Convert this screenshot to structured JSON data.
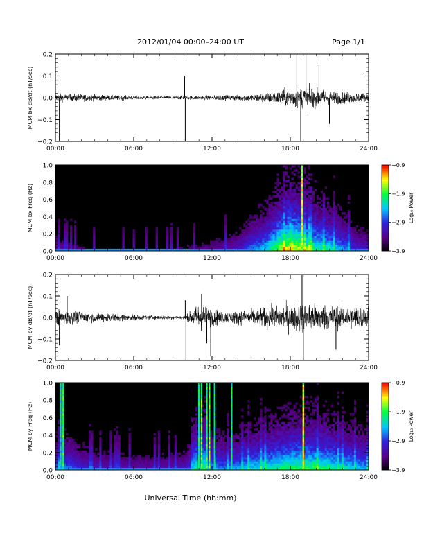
{
  "header": {
    "title": "2012/01/04  00:00–24:00 UT",
    "page": "Page 1/1"
  },
  "footer": {
    "xlabel": "Universal Time (hh:mm)"
  },
  "colors": {
    "background_plot": "#000000",
    "trace": "#000000",
    "colormap": [
      "#000000",
      "#5a008a",
      "#3020e0",
      "#00c8ff",
      "#00ff40",
      "#ffff00",
      "#ff0000"
    ]
  },
  "chart_data": [
    {
      "id": "bx-dbdt",
      "type": "line",
      "ylabel": "MCM bx dB/dt (nT/sec)",
      "ylim": [
        -0.2,
        0.2
      ],
      "yticks": [
        -0.2,
        -0.1,
        0.0,
        0.1,
        0.2
      ],
      "ytick_labels": [
        "−0.2",
        "−0.1",
        "0.0",
        "0.1",
        "0.2"
      ],
      "xlim": [
        0,
        24
      ],
      "xticks": [
        0,
        6,
        12,
        18,
        24
      ],
      "xtick_labels": [
        "00:00",
        "06:00",
        "12:00",
        "18:00",
        "24:00"
      ],
      "envelope": {
        "x": [
          0,
          1,
          2,
          3,
          4,
          5,
          6,
          7,
          8,
          9,
          10,
          11,
          12,
          13,
          14,
          15,
          16,
          17,
          18,
          19,
          20,
          21,
          22,
          23,
          24
        ],
        "amp": [
          0.018,
          0.016,
          0.015,
          0.013,
          0.011,
          0.01,
          0.009,
          0.008,
          0.008,
          0.008,
          0.008,
          0.009,
          0.01,
          0.011,
          0.013,
          0.016,
          0.02,
          0.026,
          0.045,
          0.05,
          0.04,
          0.03,
          0.025,
          0.022,
          0.02
        ]
      },
      "spikes": [
        {
          "x": 0.3,
          "y": -0.2
        },
        {
          "x": 9.9,
          "y": 0.1
        },
        {
          "x": 9.95,
          "y": -0.2
        },
        {
          "x": 18.5,
          "y": 0.2
        },
        {
          "x": 18.8,
          "y": -0.2
        },
        {
          "x": 19.2,
          "y": 0.2
        },
        {
          "x": 20.2,
          "y": 0.15
        },
        {
          "x": 21.0,
          "y": -0.12
        }
      ]
    },
    {
      "id": "bx-freq",
      "type": "heatmap",
      "ylabel": "MCM bx Freq (Hz)",
      "ylim": [
        0.0,
        1.0
      ],
      "yticks": [
        0.0,
        0.2,
        0.4,
        0.6,
        0.8,
        1.0
      ],
      "ytick_labels": [
        "0.0",
        "0.2",
        "0.4",
        "0.6",
        "0.8",
        "1.0"
      ],
      "xlim": [
        0,
        24
      ],
      "xticks": [
        0,
        6,
        12,
        18,
        24
      ],
      "xtick_labels": [
        "00:00",
        "06:00",
        "12:00",
        "18:00",
        "24:00"
      ],
      "colorbar": {
        "label": "Log₁₀ Power",
        "range": [
          -3.9,
          -0.9
        ],
        "ticks": [
          -0.9,
          -1.9,
          -2.9,
          -3.9
        ],
        "tick_labels": [
          "−0.9",
          "−1.9",
          "−2.9",
          "−3.9"
        ]
      },
      "activity": {
        "x": [
          0,
          2,
          4,
          6,
          8,
          10,
          12,
          14,
          15,
          16,
          17,
          18,
          19,
          20,
          21,
          22,
          23,
          24
        ],
        "level": [
          0.25,
          0.15,
          0.12,
          0.1,
          0.12,
          0.15,
          0.2,
          0.3,
          0.45,
          0.55,
          0.75,
          0.9,
          0.8,
          0.65,
          0.6,
          0.5,
          0.35,
          0.3
        ]
      },
      "bright_lines": [
        {
          "x": 18.9,
          "intensity": 0.8
        }
      ]
    },
    {
      "id": "by-dbdt",
      "type": "line",
      "ylabel": "MCM by dB/dt (nT/sec)",
      "ylim": [
        -0.2,
        0.2
      ],
      "yticks": [
        -0.2,
        -0.1,
        0.0,
        0.1,
        0.2
      ],
      "ytick_labels": [
        "−0.2",
        "−0.1",
        "0.0",
        "0.1",
        "0.2"
      ],
      "xlim": [
        0,
        24
      ],
      "xticks": [
        0,
        6,
        12,
        18,
        24
      ],
      "xtick_labels": [
        "00:00",
        "06:00",
        "12:00",
        "18:00",
        "24:00"
      ],
      "envelope": {
        "x": [
          0,
          1,
          2,
          3,
          4,
          5,
          6,
          7,
          8,
          9,
          10,
          11,
          12,
          13,
          14,
          15,
          16,
          17,
          18,
          19,
          20,
          21,
          22,
          23,
          24
        ],
        "amp": [
          0.035,
          0.03,
          0.025,
          0.02,
          0.02,
          0.015,
          0.012,
          0.01,
          0.01,
          0.008,
          0.01,
          0.06,
          0.04,
          0.025,
          0.03,
          0.035,
          0.045,
          0.05,
          0.06,
          0.065,
          0.06,
          0.055,
          0.05,
          0.05,
          0.05
        ]
      },
      "spikes": [
        {
          "x": 0.3,
          "y": -0.13
        },
        {
          "x": 0.9,
          "y": 0.1
        },
        {
          "x": 9.95,
          "y": 0.08
        },
        {
          "x": 10.0,
          "y": -0.2
        },
        {
          "x": 11.2,
          "y": 0.11
        },
        {
          "x": 11.6,
          "y": -0.12
        },
        {
          "x": 11.9,
          "y": -0.18
        },
        {
          "x": 18.9,
          "y": 0.2
        },
        {
          "x": 19.0,
          "y": -0.2
        },
        {
          "x": 21.5,
          "y": -0.15
        }
      ]
    },
    {
      "id": "by-freq",
      "type": "heatmap",
      "ylabel": "MCM by Freq (Hz)",
      "ylim": [
        0.0,
        1.0
      ],
      "yticks": [
        0.0,
        0.2,
        0.4,
        0.6,
        0.8,
        1.0
      ],
      "ytick_labels": [
        "0.0",
        "0.2",
        "0.4",
        "0.6",
        "0.8",
        "1.0"
      ],
      "xlim": [
        0,
        24
      ],
      "xticks": [
        0,
        6,
        12,
        18,
        24
      ],
      "xtick_labels": [
        "00:00",
        "06:00",
        "12:00",
        "18:00",
        "24:00"
      ],
      "colorbar": {
        "label": "Log₁₀ Power",
        "range": [
          -3.9,
          -0.9
        ],
        "ticks": [
          -0.9,
          -1.9,
          -2.9,
          -3.9
        ],
        "tick_labels": [
          "−0.9",
          "−1.9",
          "−2.9",
          "−3.9"
        ]
      },
      "activity": {
        "x": [
          0,
          1,
          2,
          3,
          4,
          6,
          8,
          10,
          11,
          12,
          13,
          14,
          15,
          16,
          17,
          18,
          19,
          20,
          21,
          22,
          23,
          24
        ],
        "level": [
          0.45,
          0.45,
          0.35,
          0.3,
          0.28,
          0.25,
          0.25,
          0.3,
          0.55,
          0.5,
          0.45,
          0.5,
          0.55,
          0.6,
          0.65,
          0.7,
          0.7,
          0.7,
          0.65,
          0.6,
          0.55,
          0.5
        ]
      },
      "bright_lines": [
        {
          "x": 0.4,
          "intensity": 0.55
        },
        {
          "x": 0.6,
          "intensity": 0.65
        },
        {
          "x": 11.0,
          "intensity": 0.6
        },
        {
          "x": 11.2,
          "intensity": 0.7
        },
        {
          "x": 11.6,
          "intensity": 0.65
        },
        {
          "x": 11.8,
          "intensity": 0.7
        },
        {
          "x": 12.2,
          "intensity": 0.6
        },
        {
          "x": 13.5,
          "intensity": 0.6
        },
        {
          "x": 19.0,
          "intensity": 0.8
        }
      ]
    }
  ]
}
